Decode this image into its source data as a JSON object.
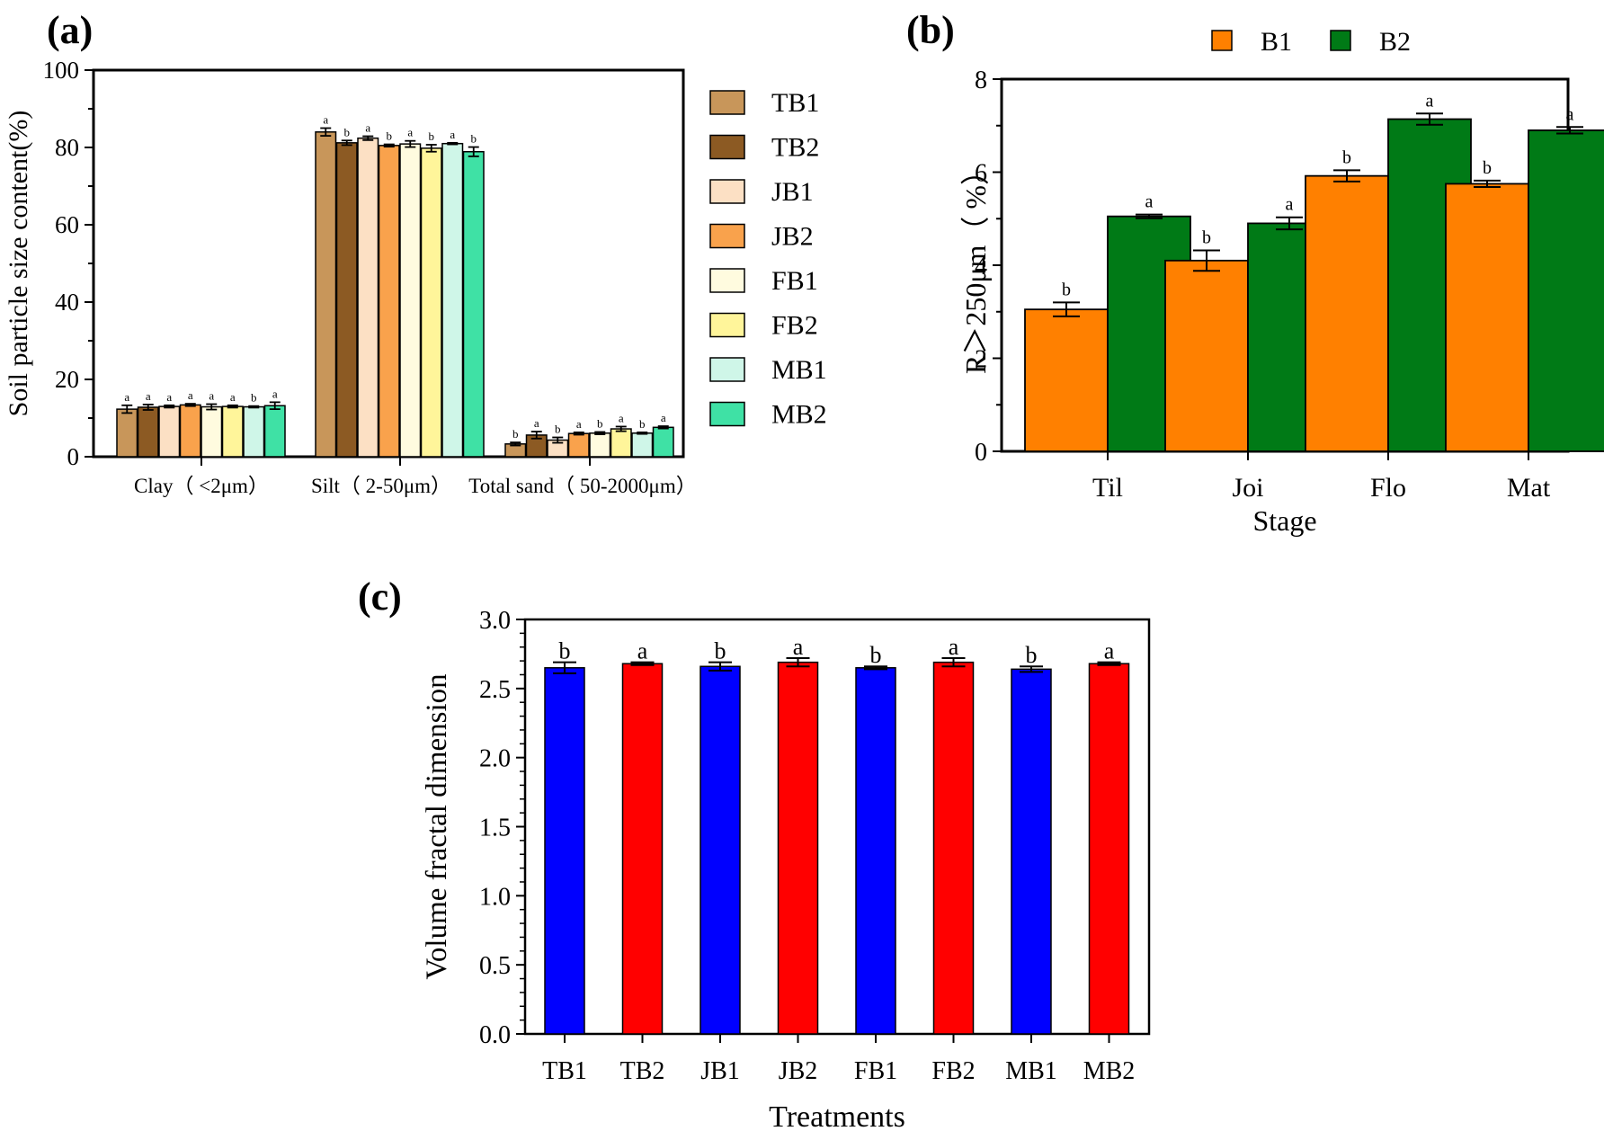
{
  "colors": {
    "a_series": [
      "#C8965A",
      "#8C5A23",
      "#FCE0C4",
      "#F9A24C",
      "#FFFBDF",
      "#FFF59A",
      "#CFF6E8",
      "#3FE1A5"
    ],
    "b_series": [
      "#FF8000",
      "#007A16"
    ],
    "c_series": [
      "#0000FF",
      "#FF0000"
    ]
  },
  "chart_data": [
    {
      "panel": "(a)",
      "type": "bar",
      "ylabel": "Soil particle size content(%)",
      "xlabel": "",
      "ylim": [
        0,
        100
      ],
      "yticks": [
        0,
        20,
        40,
        60,
        80,
        100
      ],
      "legend": "right",
      "categories": [
        "Clay（ <2μm）",
        "Silt（ 2-50μm）",
        "Total sand（ 50-2000μm）"
      ],
      "series": [
        {
          "name": "TB1",
          "values": [
            12.3,
            84.0,
            3.3
          ],
          "errors": [
            1.0,
            1.0,
            0.4
          ],
          "letters": [
            "a",
            "a",
            "b"
          ]
        },
        {
          "name": "TB2",
          "values": [
            12.8,
            81.2,
            5.6
          ],
          "errors": [
            0.7,
            0.6,
            0.9
          ],
          "letters": [
            "a",
            "b",
            "a"
          ]
        },
        {
          "name": "JB1",
          "values": [
            13.0,
            82.4,
            4.3
          ],
          "errors": [
            0.3,
            0.5,
            0.7
          ],
          "letters": [
            "a",
            "a",
            "b"
          ]
        },
        {
          "name": "JB2",
          "values": [
            13.4,
            80.5,
            6.0
          ],
          "errors": [
            0.3,
            0.3,
            0.3
          ],
          "letters": [
            "a",
            "b",
            "a"
          ]
        },
        {
          "name": "FB1",
          "values": [
            12.9,
            80.9,
            6.1
          ],
          "errors": [
            0.7,
            0.8,
            0.3
          ],
          "letters": [
            "a",
            "a",
            "b"
          ]
        },
        {
          "name": "FB2",
          "values": [
            13.0,
            79.8,
            7.2
          ],
          "errors": [
            0.3,
            0.9,
            0.6
          ],
          "letters": [
            "a",
            "b",
            "a"
          ]
        },
        {
          "name": "MB1",
          "values": [
            12.9,
            81.0,
            6.1
          ],
          "errors": [
            0.2,
            0.2,
            0.2
          ],
          "letters": [
            "b",
            "a",
            "b"
          ]
        },
        {
          "name": "MB2",
          "values": [
            13.2,
            78.9,
            7.6
          ],
          "errors": [
            0.9,
            1.2,
            0.3
          ],
          "letters": [
            "a",
            "b",
            "a"
          ]
        }
      ]
    },
    {
      "panel": "(b)",
      "type": "bar",
      "ylabel": "R＞250μm（ %）",
      "xlabel": "Stage",
      "ylim": [
        0,
        8
      ],
      "yticks": [
        0,
        2,
        4,
        6,
        8
      ],
      "legend": "top",
      "categories": [
        "Til",
        "Joi",
        "Flo",
        "Mat"
      ],
      "series": [
        {
          "name": "B1",
          "values": [
            3.05,
            4.1,
            5.92,
            5.75
          ],
          "errors": [
            0.15,
            0.22,
            0.12,
            0.07
          ],
          "letters": [
            "b",
            "b",
            "b",
            "b"
          ]
        },
        {
          "name": "B2",
          "values": [
            5.05,
            4.9,
            7.14,
            6.9
          ],
          "errors": [
            0.04,
            0.13,
            0.12,
            0.07
          ],
          "letters": [
            "a",
            "a",
            "a",
            "a"
          ]
        }
      ]
    },
    {
      "panel": "(c)",
      "type": "bar",
      "ylabel": "Volume fractal dimension",
      "xlabel": "Treatments",
      "ylim": [
        0,
        3.0
      ],
      "yticks": [
        "0.0",
        "0.5",
        "1.0",
        "1.5",
        "2.0",
        "2.5",
        "3.0"
      ],
      "categories": [
        "TB1",
        "TB2",
        "JB1",
        "JB2",
        "FB1",
        "FB2",
        "MB1",
        "MB2"
      ],
      "values": [
        2.65,
        2.68,
        2.66,
        2.69,
        2.65,
        2.69,
        2.64,
        2.68
      ],
      "errors": [
        0.04,
        0.01,
        0.03,
        0.03,
        0.01,
        0.03,
        0.02,
        0.01
      ],
      "letters": [
        "b",
        "a",
        "b",
        "a",
        "b",
        "a",
        "b",
        "a"
      ]
    }
  ]
}
